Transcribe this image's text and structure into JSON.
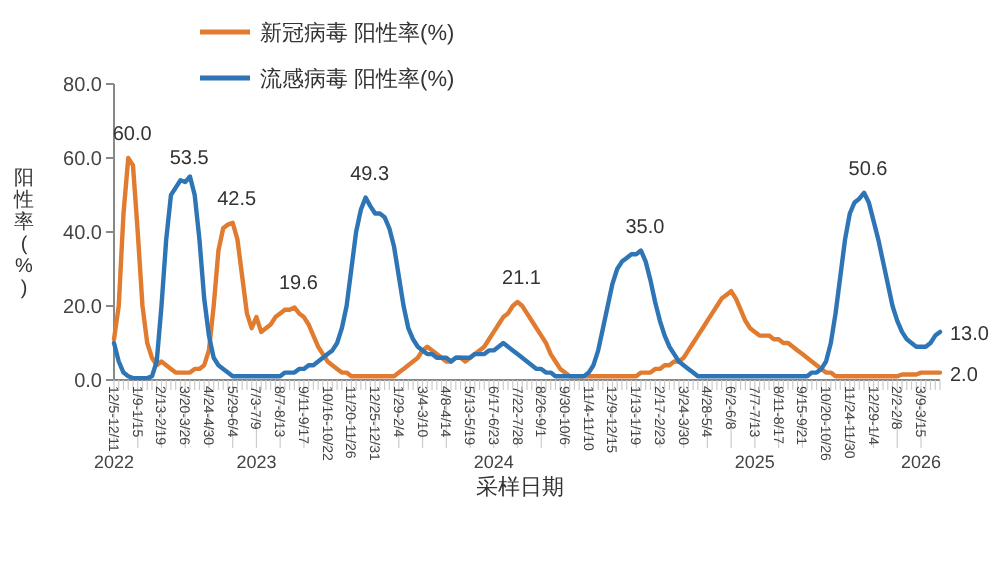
{
  "chart_data": {
    "type": "line",
    "xlabel": "采样日期",
    "ylabel": "阳性率(%)",
    "categories": [
      "12/5-12/11",
      null,
      null,
      null,
      null,
      "1/9-1/15",
      null,
      null,
      null,
      null,
      "2/13-2/19",
      null,
      null,
      null,
      null,
      "3/20-3/26",
      null,
      null,
      null,
      null,
      "4/24-4/30",
      null,
      null,
      null,
      null,
      "5/29-6/4",
      null,
      null,
      null,
      null,
      "7/3-7/9",
      null,
      null,
      null,
      null,
      "8/7-8/13",
      null,
      null,
      null,
      null,
      "9/11-9/17",
      null,
      null,
      null,
      null,
      "10/16-10/22",
      null,
      null,
      null,
      null,
      "11/20-11/26",
      null,
      null,
      null,
      null,
      "12/25-12/31",
      null,
      null,
      null,
      null,
      "1/29-2/4",
      null,
      null,
      null,
      null,
      "3/4-3/10",
      null,
      null,
      null,
      null,
      "4/8-4/14",
      null,
      null,
      null,
      null,
      "5/13-5/19",
      null,
      null,
      null,
      null,
      "6/17-6/23",
      null,
      null,
      null,
      null,
      "7/22-7/28",
      null,
      null,
      null,
      null,
      "8/26-9/1",
      null,
      null,
      null,
      null,
      "9/30-10/6",
      null,
      null,
      null,
      null,
      "11/4-11/10",
      null,
      null,
      null,
      null,
      "12/9-12/15",
      null,
      null,
      null,
      null,
      "1/13-1/19",
      null,
      null,
      null,
      null,
      "2/17-2/23",
      null,
      null,
      null,
      null,
      "3/24-3/30",
      null,
      null,
      null,
      null,
      "4/28-5/4",
      null,
      null,
      null,
      null,
      "6/2-6/8",
      null,
      null,
      null,
      null,
      "7/7-7/13",
      null,
      null,
      null,
      null,
      "8/11-8/17",
      null,
      null,
      null,
      null,
      "9/15-9/21",
      null,
      null,
      null,
      null,
      "10/20-10/26",
      null,
      null,
      null,
      null,
      "11/24-11/30",
      null,
      null,
      null,
      null,
      "12/29-1/4",
      null,
      null,
      null,
      null,
      "2/2-2/8",
      null,
      null,
      null,
      null,
      "3/9-3/15",
      null,
      null,
      null,
      null
    ],
    "series": [
      {
        "name": "新冠病毒 阳性率(%)",
        "color": "#e07b30",
        "values": [
          11,
          20,
          45,
          60.0,
          58,
          40,
          20,
          10,
          6,
          4,
          5,
          4,
          3,
          2,
          2,
          2,
          2,
          3,
          3,
          4,
          8,
          20,
          35,
          41,
          42,
          42.5,
          38,
          28,
          18,
          14,
          17,
          13,
          14,
          15,
          17,
          18,
          19,
          19,
          19.6,
          18,
          17,
          15,
          12,
          9,
          7,
          5,
          4,
          3,
          2,
          2,
          1,
          1,
          1,
          1,
          1,
          1,
          1,
          1,
          1,
          1,
          2,
          3,
          4,
          5,
          6,
          8,
          9,
          8,
          7,
          6,
          5,
          5,
          6,
          6,
          5,
          6,
          7,
          8,
          9,
          11,
          13,
          15,
          17,
          18,
          20,
          21.1,
          20,
          18,
          16,
          14,
          12,
          10,
          7,
          5,
          3,
          2,
          1,
          1,
          1,
          1,
          1,
          1,
          1,
          1,
          1,
          1,
          1,
          1,
          1,
          1,
          1,
          2,
          2,
          2,
          3,
          3,
          4,
          4,
          5,
          5,
          6,
          8,
          10,
          12,
          14,
          16,
          18,
          20,
          22,
          23,
          24,
          22,
          19,
          16,
          14,
          13,
          12,
          12,
          12,
          11,
          11,
          10,
          10,
          9,
          8,
          7,
          6,
          5,
          4,
          3,
          2,
          2,
          1,
          1,
          1,
          1,
          1,
          1,
          1,
          1,
          1,
          1,
          1,
          1,
          1,
          1,
          1.5,
          1.5,
          1.5,
          1.5,
          2,
          2,
          2,
          2,
          2.0
        ],
        "value_labels": [
          null,
          null,
          null,
          "60.0",
          null,
          null,
          null,
          null,
          null,
          null,
          null,
          null,
          null,
          null,
          null,
          null,
          null,
          null,
          null,
          null,
          null,
          null,
          null,
          null,
          null,
          "42.5",
          null,
          null,
          null,
          null,
          null,
          null,
          null,
          null,
          null,
          null,
          null,
          null,
          "19.6",
          null,
          null,
          null,
          null,
          null,
          null,
          null,
          null,
          null,
          null,
          null,
          null,
          null,
          null,
          null,
          null,
          null,
          null,
          null,
          null,
          null,
          null,
          null,
          null,
          null,
          null,
          null,
          null,
          null,
          null,
          null,
          null,
          null,
          null,
          null,
          null,
          null,
          null,
          null,
          null,
          null,
          null,
          null,
          null,
          null,
          null,
          "21.1",
          null,
          null,
          null,
          null,
          null,
          null,
          null,
          null,
          null,
          null,
          null,
          null,
          null,
          null,
          null,
          null,
          null,
          null,
          null,
          null,
          null,
          null,
          null,
          null,
          null,
          null,
          null,
          null,
          null,
          null,
          null,
          null,
          null,
          null,
          null,
          null,
          null,
          null,
          null,
          null,
          null,
          null,
          null,
          null,
          null,
          null,
          null,
          null,
          null,
          null,
          null,
          null,
          null,
          null,
          null,
          null,
          null,
          null,
          null,
          null,
          null,
          null,
          null,
          null,
          null,
          null,
          null,
          null,
          null,
          null,
          null,
          null,
          null,
          null,
          null,
          null,
          null,
          null,
          null,
          null,
          null,
          null,
          null,
          null,
          null,
          null,
          null,
          null,
          "2.0"
        ]
      },
      {
        "name": "流感病毒 阳性率(%)",
        "color": "#2e75b6",
        "values": [
          10,
          5,
          2,
          1,
          0.5,
          0.5,
          0.5,
          0.5,
          1,
          5,
          20,
          38,
          50,
          52,
          54,
          53.5,
          55,
          50,
          38,
          22,
          12,
          6,
          4,
          3,
          2,
          1,
          1,
          1,
          1,
          1,
          1,
          1,
          1,
          1,
          1,
          1,
          2,
          2,
          2,
          3,
          3,
          4,
          4,
          5,
          6,
          7,
          8,
          10,
          14,
          20,
          30,
          40,
          46,
          49.3,
          47,
          45,
          45,
          44,
          41,
          36,
          28,
          20,
          14,
          11,
          9,
          8,
          7,
          7,
          6,
          6,
          6,
          5,
          6,
          6,
          6,
          6,
          7,
          7,
          7,
          8,
          8,
          9,
          10,
          9,
          8,
          7,
          6,
          5,
          4,
          3,
          3,
          2,
          2,
          1,
          1,
          1,
          1,
          1,
          1,
          1,
          2,
          4,
          8,
          14,
          20,
          26,
          30,
          32,
          33,
          34,
          34,
          35.0,
          32,
          27,
          21,
          16,
          12,
          9,
          7,
          5,
          4,
          3,
          2,
          1,
          1,
          1,
          1,
          1,
          1,
          1,
          1,
          1,
          1,
          1,
          1,
          1,
          1,
          1,
          1,
          1,
          1,
          1,
          1,
          1,
          1,
          1,
          1,
          2,
          2,
          3,
          5,
          10,
          18,
          28,
          38,
          45,
          48,
          49,
          50.6,
          48,
          43,
          38,
          32,
          26,
          20,
          16,
          13,
          11,
          10,
          9,
          9,
          9,
          10,
          12,
          13.0
        ],
        "value_labels": [
          null,
          null,
          null,
          null,
          null,
          null,
          null,
          null,
          null,
          null,
          null,
          null,
          null,
          null,
          null,
          "53.5",
          null,
          null,
          null,
          null,
          null,
          null,
          null,
          null,
          null,
          null,
          null,
          null,
          null,
          null,
          null,
          null,
          null,
          null,
          null,
          null,
          null,
          null,
          null,
          null,
          null,
          null,
          null,
          null,
          null,
          null,
          null,
          null,
          null,
          null,
          null,
          null,
          null,
          "49.3",
          null,
          null,
          null,
          null,
          null,
          null,
          null,
          null,
          null,
          null,
          null,
          null,
          null,
          null,
          null,
          null,
          null,
          null,
          null,
          null,
          null,
          null,
          null,
          null,
          null,
          null,
          null,
          null,
          null,
          null,
          null,
          null,
          null,
          null,
          null,
          null,
          null,
          null,
          null,
          null,
          null,
          null,
          null,
          null,
          null,
          null,
          null,
          null,
          null,
          null,
          null,
          null,
          null,
          null,
          null,
          null,
          null,
          "35.0",
          null,
          null,
          null,
          null,
          null,
          null,
          null,
          null,
          null,
          null,
          null,
          null,
          null,
          null,
          null,
          null,
          null,
          null,
          null,
          null,
          null,
          null,
          null,
          null,
          null,
          null,
          null,
          null,
          null,
          null,
          null,
          null,
          null,
          null,
          null,
          null,
          null,
          null,
          null,
          null,
          null,
          null,
          null,
          null,
          null,
          null,
          "50.6",
          null,
          null,
          null,
          null,
          null,
          null,
          null,
          null,
          null,
          null,
          null,
          null,
          null,
          null,
          null,
          "13.0"
        ]
      }
    ],
    "ylim": [
      0,
      80
    ],
    "yticks": [
      {
        "value": 0,
        "label": "0.0"
      },
      {
        "value": 20,
        "label": "20.0"
      },
      {
        "value": 40,
        "label": "40.0"
      },
      {
        "value": 60,
        "label": "60.0"
      },
      {
        "value": 80,
        "label": "80.0"
      }
    ],
    "annotations": [
      {
        "text": "2022",
        "x": "12/5-12/11"
      },
      {
        "text": "2023",
        "x": "7/3-7/9"
      },
      {
        "text": "2024",
        "x": "6/17-6/23"
      },
      {
        "text": "2025",
        "x": "7/7-7/13"
      },
      {
        "text": "2026",
        "x": "3/9-3/15"
      }
    ],
    "legend": "top",
    "grid": false,
    "marker": "none",
    "line_style": "solid"
  }
}
